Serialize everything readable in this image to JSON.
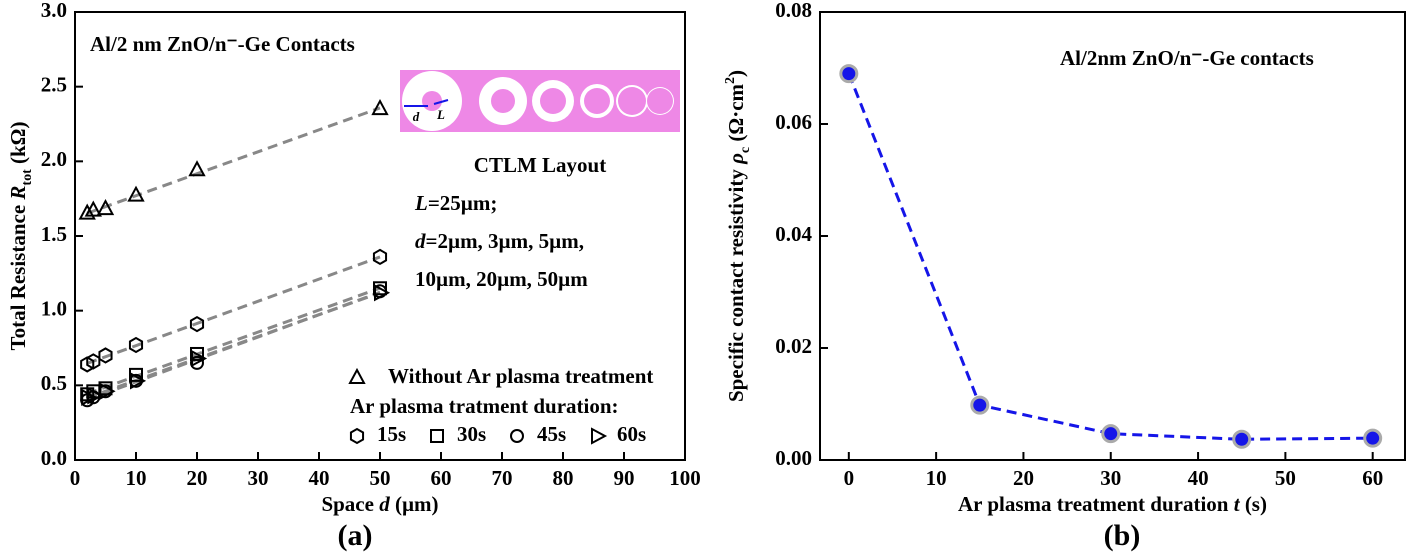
{
  "chart_data": [
    {
      "type": "scatter",
      "title": "Al/2 nm ZnO/n⁻-Ge Contacts",
      "panel_label": "(a)",
      "xlabel": [
        "Space ",
        "d",
        " (µm)"
      ],
      "xlabel_style": [
        "normal",
        "italic",
        "normal"
      ],
      "ylabel": [
        "Total Resistance ",
        "R",
        "tot",
        " (kΩ)"
      ],
      "ylabel_style": [
        "normal",
        "italic",
        "sub",
        "normal"
      ],
      "x": [
        2,
        3,
        5,
        10,
        20,
        50
      ],
      "series": [
        {
          "name": "Without Ar plasma treatment",
          "marker": "triangle-up",
          "color": "#000000",
          "values": [
            1.65,
            1.67,
            1.68,
            1.77,
            1.94,
            2.35
          ]
        },
        {
          "name": "15s",
          "marker": "hexagon",
          "color": "#000000",
          "values": [
            0.64,
            0.66,
            0.7,
            0.77,
            0.91,
            1.36
          ]
        },
        {
          "name": "30s",
          "marker": "square",
          "color": "#000000",
          "values": [
            0.44,
            0.46,
            0.48,
            0.57,
            0.71,
            1.15
          ]
        },
        {
          "name": "45s",
          "marker": "circle",
          "color": "#000000",
          "values": [
            0.4,
            0.42,
            0.46,
            0.53,
            0.65,
            1.13
          ]
        },
        {
          "name": "60s",
          "marker": "triangle-right",
          "color": "#000000",
          "values": [
            0.42,
            0.43,
            0.46,
            0.53,
            0.68,
            1.12
          ]
        }
      ],
      "fit": "linear",
      "fit_color": "#888888",
      "legend_heading": "Ar plasma tratment duration:",
      "xlim": [
        0,
        100
      ],
      "ylim": [
        0,
        3
      ],
      "xticks": [
        0,
        10,
        20,
        30,
        40,
        50,
        60,
        70,
        80,
        90,
        100
      ],
      "yticks": [
        {
          "value": 0,
          "label": "0.0"
        },
        {
          "value": 0.5,
          "label": "0.5"
        },
        {
          "value": 1,
          "label": "1.0"
        },
        {
          "value": 1.5,
          "label": "1.5"
        },
        {
          "value": 2,
          "label": "2.0"
        },
        {
          "value": 2.5,
          "label": "2.5"
        },
        {
          "value": 3,
          "label": "3.0"
        }
      ],
      "inset": {
        "title": "CTLM Layout",
        "d_label": "d",
        "L_label": "L",
        "lines": [
          {
            "italic": "L",
            "text": "=25µm;"
          },
          {
            "italic": "d",
            "text": "=2µm, 3µm, 5µm,"
          },
          {
            "text": "10µm, 20µm, 50µm"
          }
        ]
      }
    },
    {
      "type": "line",
      "title": "Al/2nm ZnO/n⁻-Ge contacts",
      "panel_label": "(b)",
      "xlabel": [
        "Ar plasma treatment duration ",
        "t",
        " (s)"
      ],
      "xlabel_style": [
        "normal",
        "italic",
        "normal"
      ],
      "ylabel": [
        "Specific contact resistivity ",
        "ρ",
        "c",
        " (Ω·cm",
        "2",
        ")"
      ],
      "ylabel_style": [
        "normal",
        "italic",
        "sub",
        "normal",
        "sup",
        "normal"
      ],
      "x": [
        0,
        15,
        30,
        45,
        60
      ],
      "series": [
        {
          "color": "#1515e8",
          "values": [
            0.069,
            0.0098,
            0.0047,
            0.0037,
            0.0039
          ]
        }
      ],
      "xlim": [
        -3.3,
        63.7
      ],
      "ylim": [
        0,
        0.08
      ],
      "xticks": [
        0,
        10,
        20,
        30,
        40,
        50,
        60
      ],
      "yticks": [
        {
          "value": 0,
          "label": "0.00"
        },
        {
          "value": 0.02,
          "label": "0.02"
        },
        {
          "value": 0.04,
          "label": "0.04"
        },
        {
          "value": 0.06,
          "label": "0.06"
        },
        {
          "value": 0.08,
          "label": "0.08"
        }
      ]
    }
  ]
}
